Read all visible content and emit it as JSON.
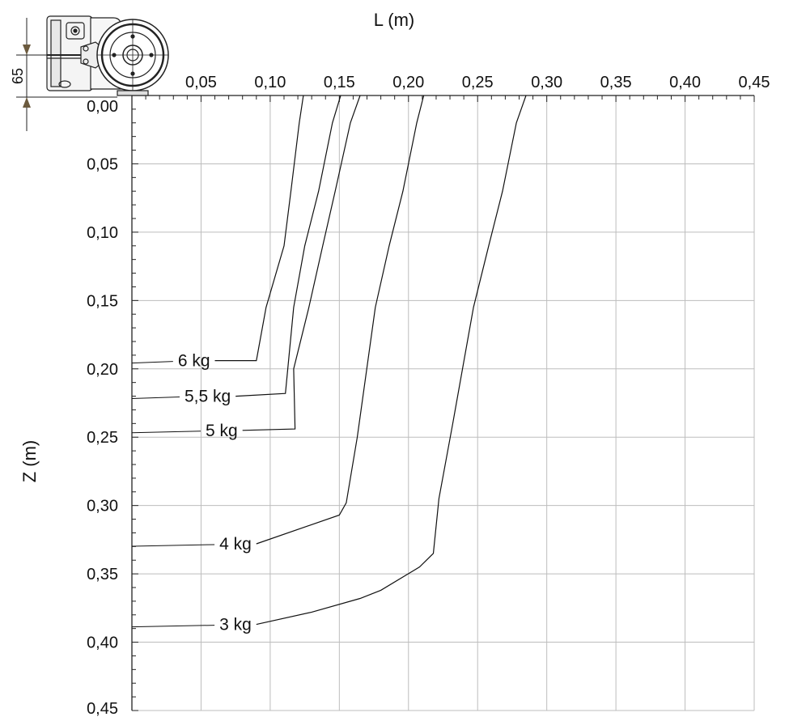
{
  "chart_data": {
    "type": "line",
    "xlabel": "L (m)",
    "ylabel": "Z (m)",
    "xlim": [
      0,
      0.45
    ],
    "ylim": [
      0,
      0.45
    ],
    "y_inverted": true,
    "x_ticks": [
      "0,05",
      "0,10",
      "0,15",
      "0,20",
      "0,25",
      "0,30",
      "0,35",
      "0,40",
      "0,45"
    ],
    "y_ticks": [
      "0,00",
      "0,05",
      "0,10",
      "0,15",
      "0,20",
      "0,25",
      "0,30",
      "0,35",
      "0,40",
      "0,45"
    ],
    "grid": true,
    "series": [
      {
        "name": "6 kg",
        "points": [
          [
            0.124,
            0.0
          ],
          [
            0.121,
            0.02
          ],
          [
            0.115,
            0.07
          ],
          [
            0.11,
            0.11
          ],
          [
            0.097,
            0.155
          ],
          [
            0.09,
            0.194
          ],
          [
            0.06,
            0.194
          ]
        ]
      },
      {
        "name": "5,5 kg",
        "points": [
          [
            0.151,
            0.0
          ],
          [
            0.145,
            0.02
          ],
          [
            0.135,
            0.07
          ],
          [
            0.125,
            0.11
          ],
          [
            0.117,
            0.155
          ],
          [
            0.111,
            0.218
          ],
          [
            0.075,
            0.22
          ]
        ]
      },
      {
        "name": "5 kg",
        "points": [
          [
            0.165,
            0.0
          ],
          [
            0.158,
            0.02
          ],
          [
            0.147,
            0.07
          ],
          [
            0.138,
            0.11
          ],
          [
            0.128,
            0.155
          ],
          [
            0.117,
            0.2
          ],
          [
            0.118,
            0.244
          ],
          [
            0.08,
            0.245
          ]
        ]
      },
      {
        "name": "4 kg",
        "points": [
          [
            0.211,
            0.0
          ],
          [
            0.206,
            0.02
          ],
          [
            0.196,
            0.07
          ],
          [
            0.186,
            0.11
          ],
          [
            0.176,
            0.155
          ],
          [
            0.163,
            0.25
          ],
          [
            0.155,
            0.298
          ],
          [
            0.15,
            0.307
          ],
          [
            0.09,
            0.328
          ]
        ]
      },
      {
        "name": "3 kg",
        "points": [
          [
            0.285,
            0.0
          ],
          [
            0.278,
            0.02
          ],
          [
            0.268,
            0.07
          ],
          [
            0.258,
            0.11
          ],
          [
            0.247,
            0.155
          ],
          [
            0.232,
            0.24
          ],
          [
            0.222,
            0.295
          ],
          [
            0.218,
            0.335
          ],
          [
            0.208,
            0.345
          ],
          [
            0.18,
            0.362
          ],
          [
            0.165,
            0.368
          ],
          [
            0.13,
            0.378
          ],
          [
            0.09,
            0.387
          ]
        ]
      }
    ],
    "annotations": [
      {
        "name": "65",
        "type": "dimension"
      }
    ]
  }
}
